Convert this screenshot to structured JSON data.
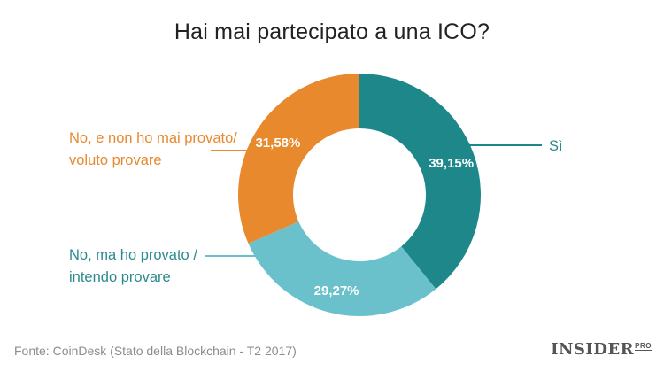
{
  "header": {
    "title": "Hai mai partecipato a una ICO?"
  },
  "labels": {
    "orange": [
      "No, e non ho mai provato/",
      "voluto provare"
    ],
    "light": [
      "No, ma ho provato /",
      "intendo provare"
    ],
    "si": "Sì"
  },
  "footer": {
    "source": "Fonte: CoinDesk (Stato della Blockchain - T2 2017)"
  },
  "brand": {
    "name": "INSIDER",
    "suffix": "PRO"
  },
  "colors": {
    "teal": "#1e878a",
    "light_teal": "#6ac1cb",
    "orange": "#e8892e"
  },
  "chart_data": {
    "type": "pie",
    "donut": true,
    "title": "Hai mai partecipato a una ICO?",
    "slices": [
      {
        "label": "Sì",
        "value": 39.15,
        "display": "39,15%",
        "color": "#1e878a"
      },
      {
        "label": "No, ma ho provato / intendo provare",
        "value": 29.27,
        "display": "29,27%",
        "color": "#6ac1cb"
      },
      {
        "label": "No, e non ho mai provato/ voluto provare",
        "value": 31.58,
        "display": "31,58%",
        "color": "#e8892e"
      }
    ]
  }
}
